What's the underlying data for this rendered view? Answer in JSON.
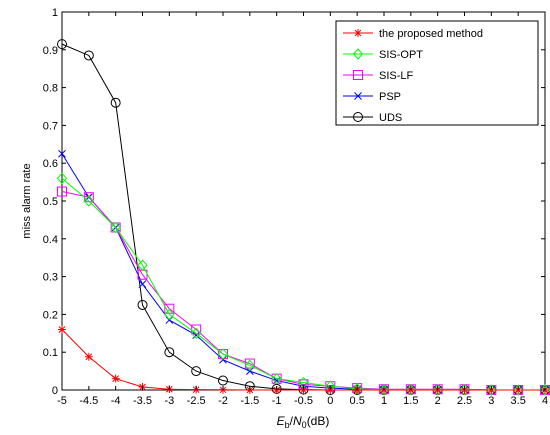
{
  "chart_data": {
    "type": "line",
    "xlabel": {
      "italic_e": "E",
      "sub_b": "b",
      "slash": "/",
      "italic_n": "N",
      "sub_0": "0",
      "unit": "(dB)"
    },
    "ylabel": "miss alarm rate",
    "xlim": [
      -5,
      4
    ],
    "ylim": [
      0,
      1
    ],
    "x": [
      -5,
      -4.5,
      -4,
      -3.5,
      -3,
      -2.5,
      -2,
      -1.5,
      -1,
      -0.5,
      0,
      0.5,
      1,
      1.5,
      2,
      2.5,
      3,
      3.5,
      4
    ],
    "x_tick_labels": [
      "-5",
      "-4.5",
      "-4",
      "-3.5",
      "-3",
      "-2.5",
      "-2",
      "-1.5",
      "-1",
      "-0.5",
      "0",
      "0.5",
      "1",
      "1.5",
      "2",
      "2.5",
      "3",
      "3.5",
      "4"
    ],
    "y_ticks": [
      0,
      0.1,
      0.2,
      0.3,
      0.4,
      0.5,
      0.6,
      0.7,
      0.8,
      0.9,
      1
    ],
    "y_tick_labels": [
      "0",
      "0.1",
      "0.2",
      "0.3",
      "0.4",
      "0.5",
      "0.6",
      "0.7",
      "0.8",
      "0.9",
      "1"
    ],
    "grid": false,
    "legend_position": "top-right",
    "series": [
      {
        "name": "the proposed method",
        "color": "#ff0000",
        "marker": "asterisk",
        "values": [
          0.16,
          0.088,
          0.03,
          0.008,
          0.002,
          0.001,
          0.0005,
          0,
          0,
          0,
          0,
          0,
          0,
          0,
          0,
          0,
          0,
          0,
          0
        ]
      },
      {
        "name": "SIS-OPT",
        "color": "#00ff00",
        "marker": "diamond",
        "values": [
          0.56,
          0.5,
          0.43,
          0.33,
          0.2,
          0.15,
          0.095,
          0.065,
          0.03,
          0.02,
          0.01,
          0.003,
          0.001,
          0.001,
          0.001,
          0.001,
          0,
          0,
          0
        ]
      },
      {
        "name": "SIS-LF",
        "color": "#ff00ff",
        "marker": "square",
        "values": [
          0.525,
          0.51,
          0.43,
          0.305,
          0.215,
          0.16,
          0.095,
          0.07,
          0.03,
          0.015,
          0.01,
          0.005,
          0.002,
          0.002,
          0.002,
          0.002,
          0,
          0,
          0
        ]
      },
      {
        "name": "PSP",
        "color": "#0000ff",
        "marker": "x",
        "values": [
          0.625,
          0.51,
          0.43,
          0.28,
          0.185,
          0.145,
          0.08,
          0.05,
          0.025,
          0.01,
          0.005,
          0.002,
          0.001,
          0.001,
          0.001,
          0.001,
          0,
          0,
          0
        ]
      },
      {
        "name": "UDS",
        "color": "#000000",
        "marker": "circle",
        "values": [
          0.915,
          0.885,
          0.76,
          0.225,
          0.1,
          0.05,
          0.025,
          0.01,
          0.003,
          0.001,
          0,
          0,
          0,
          0,
          0,
          0,
          0,
          0,
          0
        ]
      }
    ]
  }
}
